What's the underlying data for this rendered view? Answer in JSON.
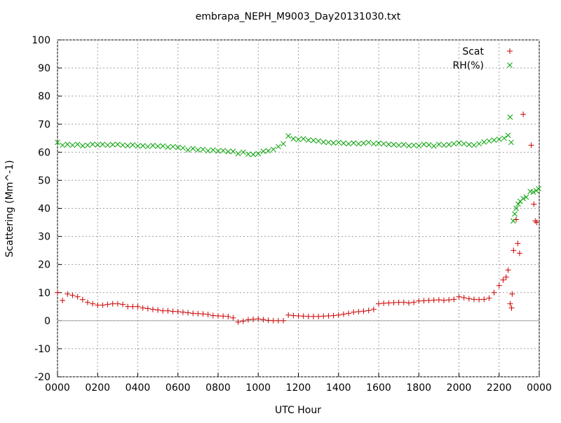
{
  "chart_data": {
    "type": "scatter",
    "title": "embrapa_NEPH_M9003_Day20131030.txt",
    "x_label": "UTC Hour",
    "y_label": "Scattering (Mm^-1)",
    "xlim": [
      0,
      24
    ],
    "ylim": [
      -20,
      100
    ],
    "xticks": [
      {
        "value": 0,
        "label": "0000"
      },
      {
        "value": 2,
        "label": "0200"
      },
      {
        "value": 4,
        "label": "0400"
      },
      {
        "value": 6,
        "label": "0600"
      },
      {
        "value": 8,
        "label": "0800"
      },
      {
        "value": 10,
        "label": "1000"
      },
      {
        "value": 12,
        "label": "1200"
      },
      {
        "value": 14,
        "label": "1400"
      },
      {
        "value": 16,
        "label": "1600"
      },
      {
        "value": 18,
        "label": "1800"
      },
      {
        "value": 20,
        "label": "2000"
      },
      {
        "value": 22,
        "label": "2200"
      },
      {
        "value": 24,
        "label": "0000"
      }
    ],
    "yticks": [
      -20,
      -10,
      0,
      10,
      20,
      30,
      40,
      50,
      60,
      70,
      80,
      90,
      100
    ],
    "grid": true,
    "zero_axis": true,
    "legend": "top-right",
    "series": [
      {
        "name": "Scat",
        "color": "#cc0000",
        "marker": "plus",
        "x": [
          0,
          0.25,
          0.5,
          0.75,
          1,
          1.25,
          1.5,
          1.75,
          2,
          2.25,
          2.5,
          2.75,
          3,
          3.25,
          3.5,
          3.75,
          4,
          4.25,
          4.5,
          4.75,
          5,
          5.25,
          5.5,
          5.75,
          6,
          6.25,
          6.5,
          6.75,
          7,
          7.25,
          7.5,
          7.75,
          8,
          8.25,
          8.5,
          8.75,
          9,
          9.25,
          9.5,
          9.75,
          10,
          10.25,
          10.5,
          10.75,
          11,
          11.25,
          11.5,
          11.75,
          12,
          12.25,
          12.5,
          12.75,
          13,
          13.25,
          13.5,
          13.75,
          14,
          14.25,
          14.5,
          14.75,
          15,
          15.25,
          15.5,
          15.75,
          16,
          16.25,
          16.5,
          16.75,
          17,
          17.25,
          17.5,
          17.75,
          18,
          18.25,
          18.5,
          18.75,
          19,
          19.25,
          19.5,
          19.75,
          20,
          20.25,
          20.5,
          20.75,
          21,
          21.25,
          21.5,
          21.75,
          22,
          22.2,
          22.35,
          22.45,
          22.55,
          22.62,
          22.65,
          22.72,
          22.85,
          22.93,
          23.02,
          23.2,
          23.6,
          23.73,
          23.8,
          23.88
        ],
        "values": [
          10,
          7.2,
          9.5,
          9,
          8.5,
          7.5,
          6.5,
          6,
          5.5,
          5.5,
          5.8,
          6,
          6,
          5.8,
          5,
          5,
          5,
          4.5,
          4.3,
          4,
          3.8,
          3.5,
          3.5,
          3.3,
          3.2,
          3,
          2.8,
          2.6,
          2.5,
          2.4,
          2.2,
          1.8,
          1.7,
          1.6,
          1.5,
          1,
          -0.5,
          -0.2,
          0.3,
          0.5,
          0.6,
          0.4,
          0.1,
          0,
          0,
          0,
          2,
          1.8,
          1.7,
          1.6,
          1.5,
          1.5,
          1.5,
          1.6,
          1.7,
          1.8,
          2,
          2.3,
          2.6,
          3,
          3.2,
          3.4,
          3.6,
          4,
          6,
          6.2,
          6.3,
          6.4,
          6.5,
          6.5,
          6.3,
          6.5,
          7,
          7.1,
          7.2,
          7.3,
          7.4,
          7.2,
          7.4,
          7.6,
          8.5,
          8.2,
          7.8,
          7.6,
          7.5,
          7.6,
          8,
          10,
          12.5,
          14.5,
          15.5,
          18,
          6,
          4.5,
          9.5,
          25,
          36,
          27.5,
          24,
          73.5,
          62.5,
          41.5,
          35.5,
          35
        ]
      },
      {
        "name": "RH(%)",
        "color": "#00a000",
        "marker": "cross",
        "x": [
          0,
          0.25,
          0.5,
          0.75,
          1,
          1.25,
          1.5,
          1.75,
          2,
          2.25,
          2.5,
          2.75,
          3,
          3.25,
          3.5,
          3.75,
          4,
          4.25,
          4.5,
          4.75,
          5,
          5.25,
          5.5,
          5.75,
          6,
          6.25,
          6.5,
          6.75,
          7,
          7.25,
          7.5,
          7.75,
          8,
          8.25,
          8.5,
          8.75,
          9,
          9.25,
          9.5,
          9.75,
          10,
          10.25,
          10.5,
          10.75,
          11,
          11.25,
          11.5,
          11.75,
          12,
          12.25,
          12.5,
          12.75,
          13,
          13.25,
          13.5,
          13.75,
          14,
          14.25,
          14.5,
          14.75,
          15,
          15.25,
          15.5,
          15.75,
          16,
          16.25,
          16.5,
          16.75,
          17,
          17.25,
          17.5,
          17.75,
          18,
          18.25,
          18.5,
          18.75,
          19,
          19.25,
          19.5,
          19.75,
          20,
          20.25,
          20.5,
          20.75,
          21,
          21.25,
          21.5,
          21.75,
          22,
          22.25,
          22.45,
          22.55,
          22.6,
          22.7,
          22.78,
          22.85,
          22.95,
          23.05,
          23.2,
          23.35,
          23.55,
          23.7,
          23.85,
          23.97
        ],
        "values": [
          63.5,
          62.5,
          62.8,
          62.5,
          62.8,
          62.3,
          62.5,
          62.8,
          62.6,
          62.8,
          62.5,
          62.7,
          62.8,
          62.5,
          62.3,
          62.6,
          62.2,
          62.3,
          62,
          62.4,
          62.1,
          62.2,
          61.8,
          62,
          61.7,
          61.5,
          60.8,
          61.3,
          60.8,
          61,
          60.5,
          60.8,
          60.4,
          60.6,
          60.2,
          60.3,
          59.5,
          60,
          59.3,
          59.2,
          59.5,
          60.3,
          60.5,
          61,
          62,
          63,
          65.8,
          64.8,
          64.5,
          64.8,
          64.3,
          64.2,
          64,
          63.6,
          63.5,
          63.3,
          63.5,
          63.2,
          63,
          63.3,
          63,
          63.2,
          63.5,
          63,
          63.2,
          63,
          62.8,
          62.7,
          62.5,
          62.7,
          62.3,
          62.5,
          62.3,
          62.8,
          62.6,
          62.2,
          62.8,
          62.5,
          62.7,
          63,
          63.3,
          63,
          62.7,
          62.5,
          63,
          63.6,
          64,
          64.3,
          64.6,
          65,
          66,
          72.5,
          63.5,
          35.5,
          38,
          40,
          41.5,
          42.5,
          43.5,
          44,
          46,
          45.8,
          46.3,
          47
        ]
      }
    ]
  }
}
